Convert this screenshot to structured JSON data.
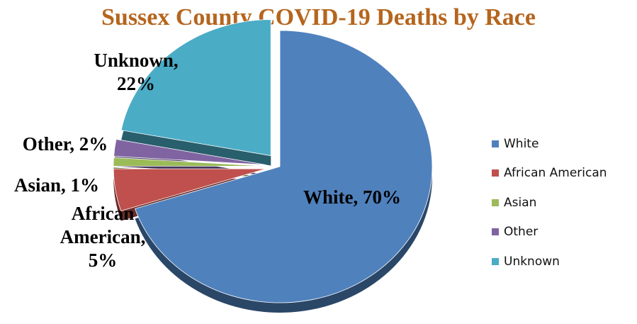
{
  "chart_data": {
    "type": "pie",
    "title": "Sussex County COVID-19 Deaths by Race",
    "categories": [
      "White",
      "African American",
      "Asian",
      "Other",
      "Unknown"
    ],
    "values": [
      70,
      5,
      1,
      2,
      22
    ],
    "data_labels": [
      "White, 70%",
      "African American, 5%",
      "Asian, 1%",
      "Other, 2%",
      "Unknown, 22%"
    ],
    "colors": [
      "#4F81BD",
      "#C0504D",
      "#9BBB59",
      "#8064A2",
      "#4BACC6"
    ],
    "title_color": "#B5651D",
    "legend_position": "right",
    "style": "3d exploded pie"
  }
}
